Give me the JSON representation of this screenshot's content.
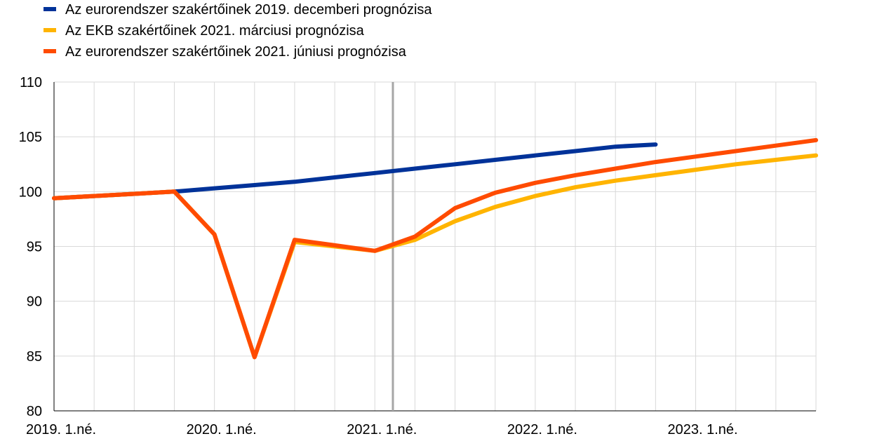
{
  "chart_data": {
    "type": "line",
    "x": [
      "2019Q1",
      "2019Q2",
      "2019Q3",
      "2019Q4",
      "2020Q1",
      "2020Q2",
      "2020Q3",
      "2020Q4",
      "2021Q1",
      "2021Q2",
      "2021Q3",
      "2021Q4",
      "2022Q1",
      "2022Q2",
      "2022Q3",
      "2022Q4",
      "2023Q1",
      "2023Q2",
      "2023Q3",
      "2023Q4"
    ],
    "x_tick_labels": [
      {
        "x": "2019Q1",
        "label": "2019. 1.né."
      },
      {
        "x": "2020Q1",
        "label": "2020. 1.né."
      },
      {
        "x": "2021Q1",
        "label": "2021. 1.né."
      },
      {
        "x": "2022Q1",
        "label": "2022. 1.né."
      },
      {
        "x": "2023Q1",
        "label": "2023. 1.né."
      }
    ],
    "ylim": [
      80,
      110
    ],
    "y_ticks": [
      80,
      85,
      90,
      95,
      100,
      105,
      110
    ],
    "grid": true,
    "vertical_marker": "2021Q2",
    "legend_position": "top-left",
    "series": [
      {
        "name": "Az eurorendszer szakértőinek 2019. decemberi prognózisa",
        "color": "#003299",
        "values": [
          99.4,
          99.6,
          99.8,
          100.0,
          100.3,
          100.6,
          100.9,
          101.3,
          101.7,
          102.1,
          102.5,
          102.9,
          103.3,
          103.7,
          104.1,
          104.3,
          null,
          null,
          null,
          null
        ]
      },
      {
        "name": "Az EKB szakértőinek 2021. márciusi prognózisa",
        "color": "#FFB400",
        "values": [
          99.4,
          99.6,
          99.8,
          100.0,
          96.1,
          84.9,
          95.4,
          95.0,
          94.6,
          95.6,
          97.3,
          98.6,
          99.6,
          100.4,
          101.0,
          101.5,
          102.0,
          102.5,
          102.9,
          103.3
        ]
      },
      {
        "name": "Az eurorendszer szakértőinek 2021. júniusi prognózisa",
        "color": "#FF4B00",
        "values": [
          99.4,
          99.6,
          99.8,
          100.0,
          96.1,
          84.9,
          95.6,
          95.1,
          94.6,
          95.9,
          98.5,
          99.9,
          100.8,
          101.5,
          102.1,
          102.7,
          103.2,
          103.7,
          104.2,
          104.7
        ]
      }
    ]
  }
}
